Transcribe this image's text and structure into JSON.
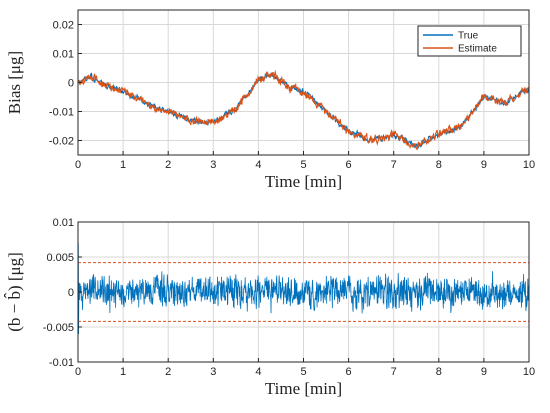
{
  "chart_data": [
    {
      "type": "line",
      "xlabel": "Time [min]",
      "ylabel": "Bias [μg]",
      "xlim": [
        0,
        10
      ],
      "ylim": [
        -0.025,
        0.025
      ],
      "xticks": [
        "0",
        "1",
        "2",
        "3",
        "4",
        "5",
        "6",
        "7",
        "8",
        "9",
        "10"
      ],
      "yticks": [
        "0.02",
        "0.01",
        "0",
        "-0.01",
        "-0.02"
      ],
      "grid": true,
      "legend_position": "top-right",
      "series": [
        {
          "name": "True",
          "color": "#0072BD",
          "noise": 0.0008
        },
        {
          "name": "Estimate",
          "color": "#D95319",
          "noise": 0.0011
        }
      ],
      "x": [
        0,
        0.3,
        0.6,
        1.0,
        1.5,
        2.0,
        2.5,
        3.0,
        3.5,
        4.0,
        4.3,
        4.7,
        5.0,
        5.5,
        6.0,
        6.5,
        7.0,
        7.5,
        8.0,
        8.5,
        9.0,
        9.5,
        10.0
      ],
      "trend": [
        0.0,
        0.002,
        -0.001,
        -0.003,
        -0.007,
        -0.01,
        -0.013,
        -0.014,
        -0.009,
        0.001,
        0.003,
        -0.002,
        -0.003,
        -0.01,
        -0.017,
        -0.02,
        -0.018,
        -0.022,
        -0.018,
        -0.015,
        -0.005,
        -0.007,
        -0.002
      ]
    },
    {
      "type": "line",
      "xlabel": "Time [min]",
      "ylabel": "(b − b̂)  [μg]",
      "xlim": [
        0,
        10
      ],
      "ylim": [
        -0.01,
        0.01
      ],
      "xticks": [
        "0",
        "1",
        "2",
        "3",
        "4",
        "5",
        "6",
        "7",
        "8",
        "9",
        "10"
      ],
      "yticks": [
        "0.01",
        "0.005",
        "0",
        "-0.005",
        "-0.01"
      ],
      "grid": true,
      "series": [
        {
          "color": "#0072BD",
          "amplitude": 0.0018
        },
        {
          "color": "#D95319",
          "style": "dashed",
          "value": 0.0042
        },
        {
          "color": "#D95319",
          "style": "dashed",
          "value": -0.0042
        }
      ]
    }
  ]
}
